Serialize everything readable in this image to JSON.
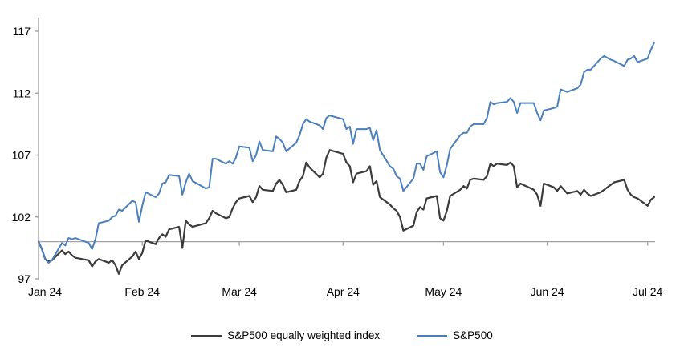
{
  "chart_data": {
    "type": "line",
    "title": "",
    "subtitle": "",
    "xlabel": "",
    "ylabel": "",
    "index_base": 100,
    "baseline_value": 100,
    "y_ticks": [
      97,
      102,
      107,
      112,
      117
    ],
    "ylim": [
      97,
      118.1
    ],
    "x_tick_labels": [
      "Jan 24",
      "Feb 24",
      "Mar 24",
      "Apr 24",
      "May 24",
      "Jun 24",
      "Jul 24"
    ],
    "x_tick_dates": [
      "2024-01-01",
      "2024-02-01",
      "2024-03-01",
      "2024-04-01",
      "2024-05-01",
      "2024-06-01",
      "2024-07-01"
    ],
    "grid": "none (single horizontal reference line at 100 with month tick marks)",
    "legend_position": "bottom-center",
    "dates": [
      "2024-01-01",
      "2024-01-02",
      "2024-01-03",
      "2024-01-04",
      "2024-01-05",
      "2024-01-08",
      "2024-01-09",
      "2024-01-10",
      "2024-01-11",
      "2024-01-12",
      "2024-01-16",
      "2024-01-17",
      "2024-01-18",
      "2024-01-19",
      "2024-01-22",
      "2024-01-23",
      "2024-01-24",
      "2024-01-25",
      "2024-01-26",
      "2024-01-29",
      "2024-01-30",
      "2024-01-31",
      "2024-02-01",
      "2024-02-02",
      "2024-02-05",
      "2024-02-06",
      "2024-02-07",
      "2024-02-08",
      "2024-02-09",
      "2024-02-12",
      "2024-02-13",
      "2024-02-14",
      "2024-02-15",
      "2024-02-16",
      "2024-02-20",
      "2024-02-21",
      "2024-02-22",
      "2024-02-23",
      "2024-02-26",
      "2024-02-27",
      "2024-02-28",
      "2024-02-29",
      "2024-03-01",
      "2024-03-04",
      "2024-03-05",
      "2024-03-06",
      "2024-03-07",
      "2024-03-08",
      "2024-03-11",
      "2024-03-12",
      "2024-03-13",
      "2024-03-14",
      "2024-03-15",
      "2024-03-18",
      "2024-03-19",
      "2024-03-20",
      "2024-03-21",
      "2024-03-22",
      "2024-03-25",
      "2024-03-26",
      "2024-03-27",
      "2024-03-28",
      "2024-04-01",
      "2024-04-02",
      "2024-04-03",
      "2024-04-04",
      "2024-04-05",
      "2024-04-08",
      "2024-04-09",
      "2024-04-10",
      "2024-04-11",
      "2024-04-12",
      "2024-04-15",
      "2024-04-16",
      "2024-04-17",
      "2024-04-18",
      "2024-04-19",
      "2024-04-22",
      "2024-04-23",
      "2024-04-24",
      "2024-04-25",
      "2024-04-26",
      "2024-04-29",
      "2024-04-30",
      "2024-05-01",
      "2024-05-02",
      "2024-05-03",
      "2024-05-06",
      "2024-05-07",
      "2024-05-08",
      "2024-05-09",
      "2024-05-10",
      "2024-05-13",
      "2024-05-14",
      "2024-05-15",
      "2024-05-16",
      "2024-05-17",
      "2024-05-20",
      "2024-05-21",
      "2024-05-22",
      "2024-05-23",
      "2024-05-24",
      "2024-05-28",
      "2024-05-29",
      "2024-05-30",
      "2024-05-31",
      "2024-06-03",
      "2024-06-04",
      "2024-06-05",
      "2024-06-06",
      "2024-06-07",
      "2024-06-10",
      "2024-06-11",
      "2024-06-12",
      "2024-06-13",
      "2024-06-14",
      "2024-06-17",
      "2024-06-18",
      "2024-06-20",
      "2024-06-21",
      "2024-06-24",
      "2024-06-25",
      "2024-06-26",
      "2024-06-27",
      "2024-06-28",
      "2024-07-01",
      "2024-07-02",
      "2024-07-03"
    ],
    "series": [
      {
        "name": "S&P500 equally weighted index",
        "color": "#3b3b3b",
        "stroke_width": 2.2,
        "values": [
          100.0,
          99.4,
          98.6,
          98.4,
          98.5,
          99.3,
          99.0,
          99.2,
          98.9,
          98.7,
          98.5,
          98.0,
          98.4,
          98.6,
          98.3,
          98.5,
          98.1,
          97.4,
          98.1,
          98.8,
          99.2,
          98.6,
          99.1,
          100.1,
          99.8,
          100.3,
          100.6,
          100.4,
          101.0,
          101.2,
          99.5,
          101.7,
          101.4,
          101.2,
          101.5,
          101.9,
          102.5,
          102.3,
          101.9,
          102.0,
          102.7,
          103.2,
          103.5,
          103.7,
          103.2,
          103.6,
          104.5,
          104.2,
          104.1,
          104.7,
          105.0,
          104.6,
          104.0,
          104.2,
          104.9,
          105.3,
          106.4,
          106.0,
          105.2,
          105.5,
          106.8,
          107.4,
          107.1,
          106.4,
          106.1,
          104.8,
          105.5,
          105.7,
          106.1,
          104.6,
          104.9,
          103.6,
          103.0,
          102.7,
          102.5,
          102.0,
          100.9,
          101.3,
          102.4,
          102.8,
          102.6,
          103.5,
          103.7,
          101.9,
          101.7,
          102.5,
          103.7,
          104.2,
          104.5,
          104.3,
          105.0,
          105.1,
          105.0,
          105.3,
          106.3,
          106.1,
          106.3,
          106.2,
          106.4,
          106.1,
          104.4,
          104.7,
          104.2,
          103.8,
          102.9,
          104.7,
          104.4,
          104.1,
          104.5,
          104.2,
          103.9,
          104.1,
          103.8,
          104.2,
          103.9,
          103.7,
          104.0,
          104.2,
          104.6,
          104.8,
          105.0,
          104.2,
          103.8,
          103.6,
          103.5,
          102.9,
          103.4,
          103.6
        ]
      },
      {
        "name": "S&P500",
        "color": "#4a7ebc",
        "stroke_width": 2.0,
        "values": [
          100.0,
          99.4,
          98.6,
          98.3,
          98.5,
          99.9,
          99.7,
          100.3,
          100.2,
          100.3,
          99.9,
          99.4,
          100.2,
          101.5,
          101.7,
          102.0,
          102.1,
          102.6,
          102.5,
          103.3,
          103.2,
          101.6,
          102.9,
          104.0,
          103.6,
          103.9,
          104.7,
          104.8,
          105.4,
          105.3,
          103.8,
          104.8,
          105.5,
          104.9,
          104.3,
          104.4,
          106.7,
          106.7,
          106.3,
          106.5,
          106.3,
          106.8,
          107.7,
          107.6,
          106.5,
          107.0,
          108.1,
          107.4,
          107.3,
          108.5,
          108.3,
          108.0,
          107.3,
          108.0,
          108.6,
          109.5,
          109.9,
          109.7,
          109.4,
          109.1,
          110.0,
          110.2,
          109.9,
          109.1,
          109.3,
          107.9,
          109.1,
          109.1,
          109.2,
          108.2,
          109.0,
          107.4,
          106.1,
          105.9,
          105.3,
          105.1,
          104.1,
          105.1,
          106.3,
          106.3,
          105.8,
          106.9,
          107.3,
          105.6,
          105.2,
          106.2,
          107.5,
          108.6,
          108.8,
          108.8,
          109.3,
          109.5,
          109.5,
          110.0,
          111.3,
          111.1,
          111.2,
          111.3,
          111.6,
          111.3,
          110.4,
          111.2,
          111.2,
          110.4,
          109.8,
          110.6,
          110.8,
          110.9,
          112.3,
          112.2,
          112.1,
          112.4,
          112.7,
          113.7,
          113.9,
          113.9,
          114.8,
          115.0,
          114.7,
          114.6,
          114.2,
          114.7,
          114.8,
          115.0,
          114.5,
          114.8,
          115.5,
          116.1
        ]
      }
    ]
  },
  "colors": {
    "background": "#ffffff",
    "axis": "#a3a3a3",
    "reference_line": "#a3a3a3",
    "text": "#000000"
  },
  "legend": {
    "items": [
      {
        "label": "S&P500 equally weighted index"
      },
      {
        "label": "S&P500"
      }
    ]
  }
}
